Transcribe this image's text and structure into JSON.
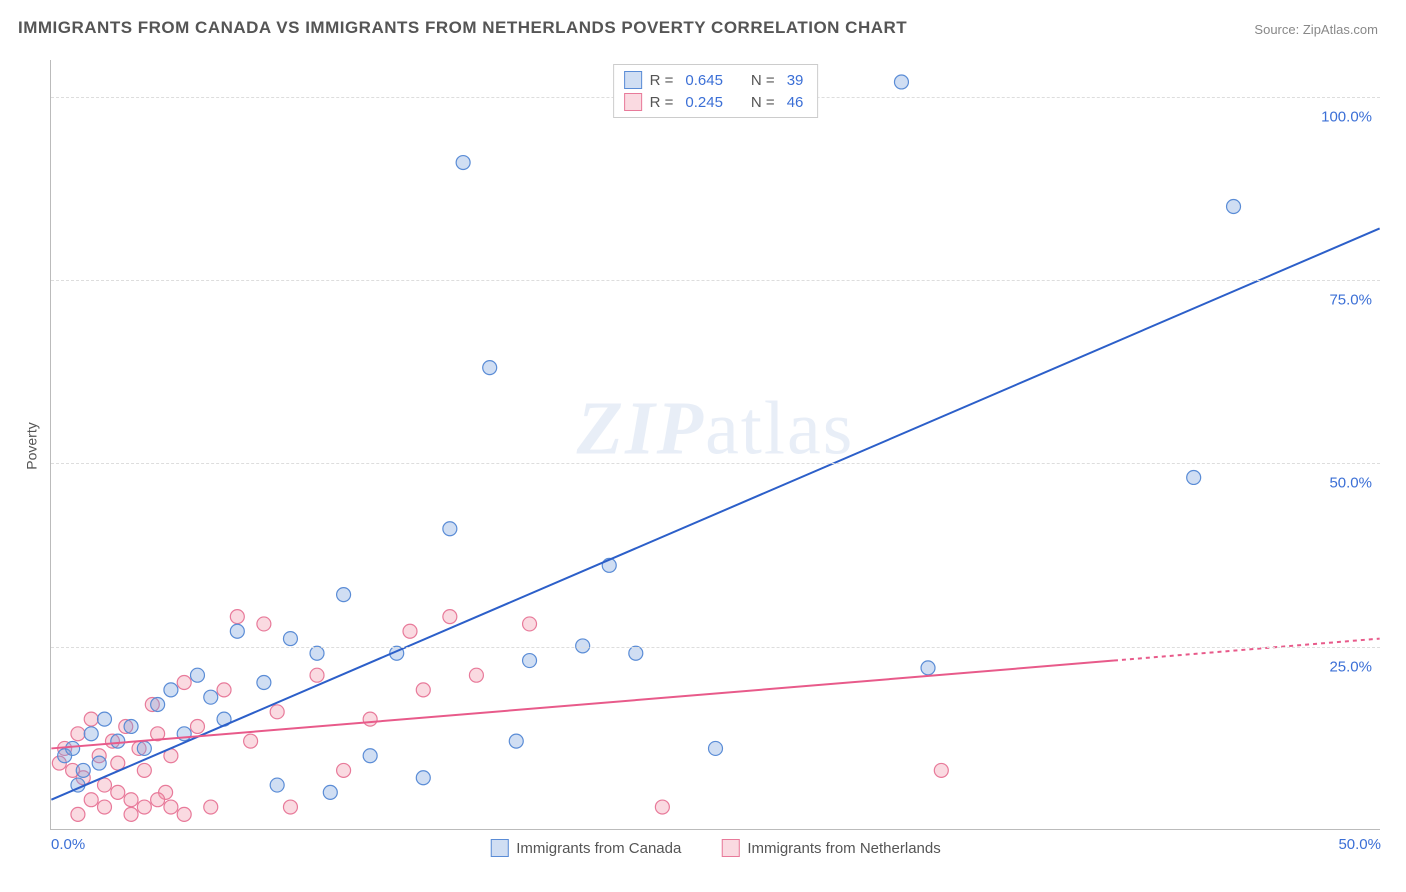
{
  "title": "IMMIGRANTS FROM CANADA VS IMMIGRANTS FROM NETHERLANDS POVERTY CORRELATION CHART",
  "source_label": "Source:",
  "source_value": "ZipAtlas.com",
  "y_axis_label": "Poverty",
  "watermark_zip": "ZIP",
  "watermark_atlas": "atlas",
  "chart": {
    "type": "scatter",
    "background_color": "#ffffff",
    "grid_color": "#dddddd",
    "axis_color": "#bbbbbb",
    "x_range": [
      0,
      50
    ],
    "y_range": [
      0,
      105
    ],
    "y_ticks": [
      25,
      50,
      75,
      100
    ],
    "y_tick_labels": [
      "25.0%",
      "50.0%",
      "75.0%",
      "100.0%"
    ],
    "x_tick_left": "0.0%",
    "x_tick_right": "50.0%",
    "tick_color": "#3b6fd6",
    "series": [
      {
        "name": "Immigrants from Canada",
        "fill_color": "rgba(120,160,220,0.35)",
        "stroke_color": "#5a8cd6",
        "line_color": "#2c5fc9",
        "line_width": 2,
        "line_dash": "none",
        "trend": {
          "x1": 0,
          "y1": 4,
          "x2": 50,
          "y2": 82
        },
        "R": "0.645",
        "N": "39",
        "points": [
          [
            0.5,
            10
          ],
          [
            0.8,
            11
          ],
          [
            1.2,
            8
          ],
          [
            1.5,
            13
          ],
          [
            1.8,
            9
          ],
          [
            2.0,
            15
          ],
          [
            2.5,
            12
          ],
          [
            3.0,
            14
          ],
          [
            3.5,
            11
          ],
          [
            4.0,
            17
          ],
          [
            4.5,
            19
          ],
          [
            5.0,
            13
          ],
          [
            5.5,
            21
          ],
          [
            6.0,
            18
          ],
          [
            6.5,
            15
          ],
          [
            7.0,
            27
          ],
          [
            8.0,
            20
          ],
          [
            8.5,
            6
          ],
          [
            9.0,
            26
          ],
          [
            10.0,
            24
          ],
          [
            10.5,
            5
          ],
          [
            11.0,
            32
          ],
          [
            12.0,
            10
          ],
          [
            13.0,
            24
          ],
          [
            14.0,
            7
          ],
          [
            15.0,
            41
          ],
          [
            15.5,
            91
          ],
          [
            16.5,
            63
          ],
          [
            17.5,
            12
          ],
          [
            18.0,
            23
          ],
          [
            20.0,
            25
          ],
          [
            21.0,
            36
          ],
          [
            22.0,
            24
          ],
          [
            25.0,
            11
          ],
          [
            32.0,
            102
          ],
          [
            33.0,
            22
          ],
          [
            43.0,
            48
          ],
          [
            44.5,
            85
          ],
          [
            1.0,
            6
          ]
        ]
      },
      {
        "name": "Immigrants from Netherlands",
        "fill_color": "rgba(240,150,170,0.35)",
        "stroke_color": "#e87a9a",
        "line_color": "#e85a8a",
        "line_width": 2,
        "line_dash": "4 4",
        "dash_start_x": 40,
        "trend": {
          "x1": 0,
          "y1": 11,
          "x2": 50,
          "y2": 26
        },
        "R": "0.245",
        "N": "46",
        "points": [
          [
            0.3,
            9
          ],
          [
            0.5,
            11
          ],
          [
            0.8,
            8
          ],
          [
            1.0,
            13
          ],
          [
            1.2,
            7
          ],
          [
            1.5,
            15
          ],
          [
            1.8,
            10
          ],
          [
            2.0,
            6
          ],
          [
            2.3,
            12
          ],
          [
            2.5,
            9
          ],
          [
            2.8,
            14
          ],
          [
            3.0,
            4
          ],
          [
            3.3,
            11
          ],
          [
            3.5,
            8
          ],
          [
            3.8,
            17
          ],
          [
            4.0,
            13
          ],
          [
            4.3,
            5
          ],
          [
            4.5,
            10
          ],
          [
            5.0,
            20
          ],
          [
            5.5,
            14
          ],
          [
            6.0,
            3
          ],
          [
            6.5,
            19
          ],
          [
            7.0,
            29
          ],
          [
            7.5,
            12
          ],
          [
            8.0,
            28
          ],
          [
            8.5,
            16
          ],
          [
            9.0,
            3
          ],
          [
            10.0,
            21
          ],
          [
            11.0,
            8
          ],
          [
            12.0,
            15
          ],
          [
            13.5,
            27
          ],
          [
            14.0,
            19
          ],
          [
            15.0,
            29
          ],
          [
            16.0,
            21
          ],
          [
            18.0,
            28
          ],
          [
            23.0,
            3
          ],
          [
            33.5,
            8
          ],
          [
            1.0,
            2
          ],
          [
            1.5,
            4
          ],
          [
            2.0,
            3
          ],
          [
            2.5,
            5
          ],
          [
            3.0,
            2
          ],
          [
            3.5,
            3
          ],
          [
            4.0,
            4
          ],
          [
            4.5,
            3
          ],
          [
            5.0,
            2
          ]
        ]
      }
    ]
  },
  "legend_top": {
    "R_label": "R =",
    "N_label": "N ="
  }
}
